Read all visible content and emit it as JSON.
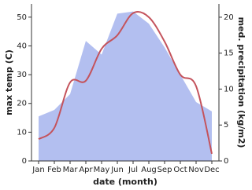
{
  "chart_data": {
    "type": "line-area",
    "x_label": "date (month)",
    "y_label": "max temp (C)",
    "y2_label": "med. precipitation (kg/m2)",
    "categories": [
      "Jan",
      "Feb",
      "Mar",
      "Apr",
      "May",
      "Jun",
      "Jul",
      "Aug",
      "Sep",
      "Oct",
      "Nov",
      "Dec"
    ],
    "series": [
      {
        "type": "area",
        "axis": "y2",
        "color": "#b3bff0",
        "values": [
          6.2,
          7.1,
          9.3,
          16.7,
          14.8,
          20.5,
          20.8,
          19.1,
          15.8,
          12,
          8.2,
          6.9
        ]
      },
      {
        "type": "line",
        "axis": "y",
        "color": "#c4535c",
        "values": [
          7.6,
          11.5,
          27.3,
          27.9,
          39,
          43.7,
          51.4,
          50,
          41.5,
          30,
          26,
          2.5
        ]
      }
    ],
    "ylim": [
      0,
      54.6
    ],
    "yticks": [
      0,
      10,
      20,
      30,
      40,
      50
    ],
    "y2lim": [
      0,
      21.85
    ],
    "y2ticks": [
      0,
      5,
      10,
      15,
      20
    ]
  }
}
